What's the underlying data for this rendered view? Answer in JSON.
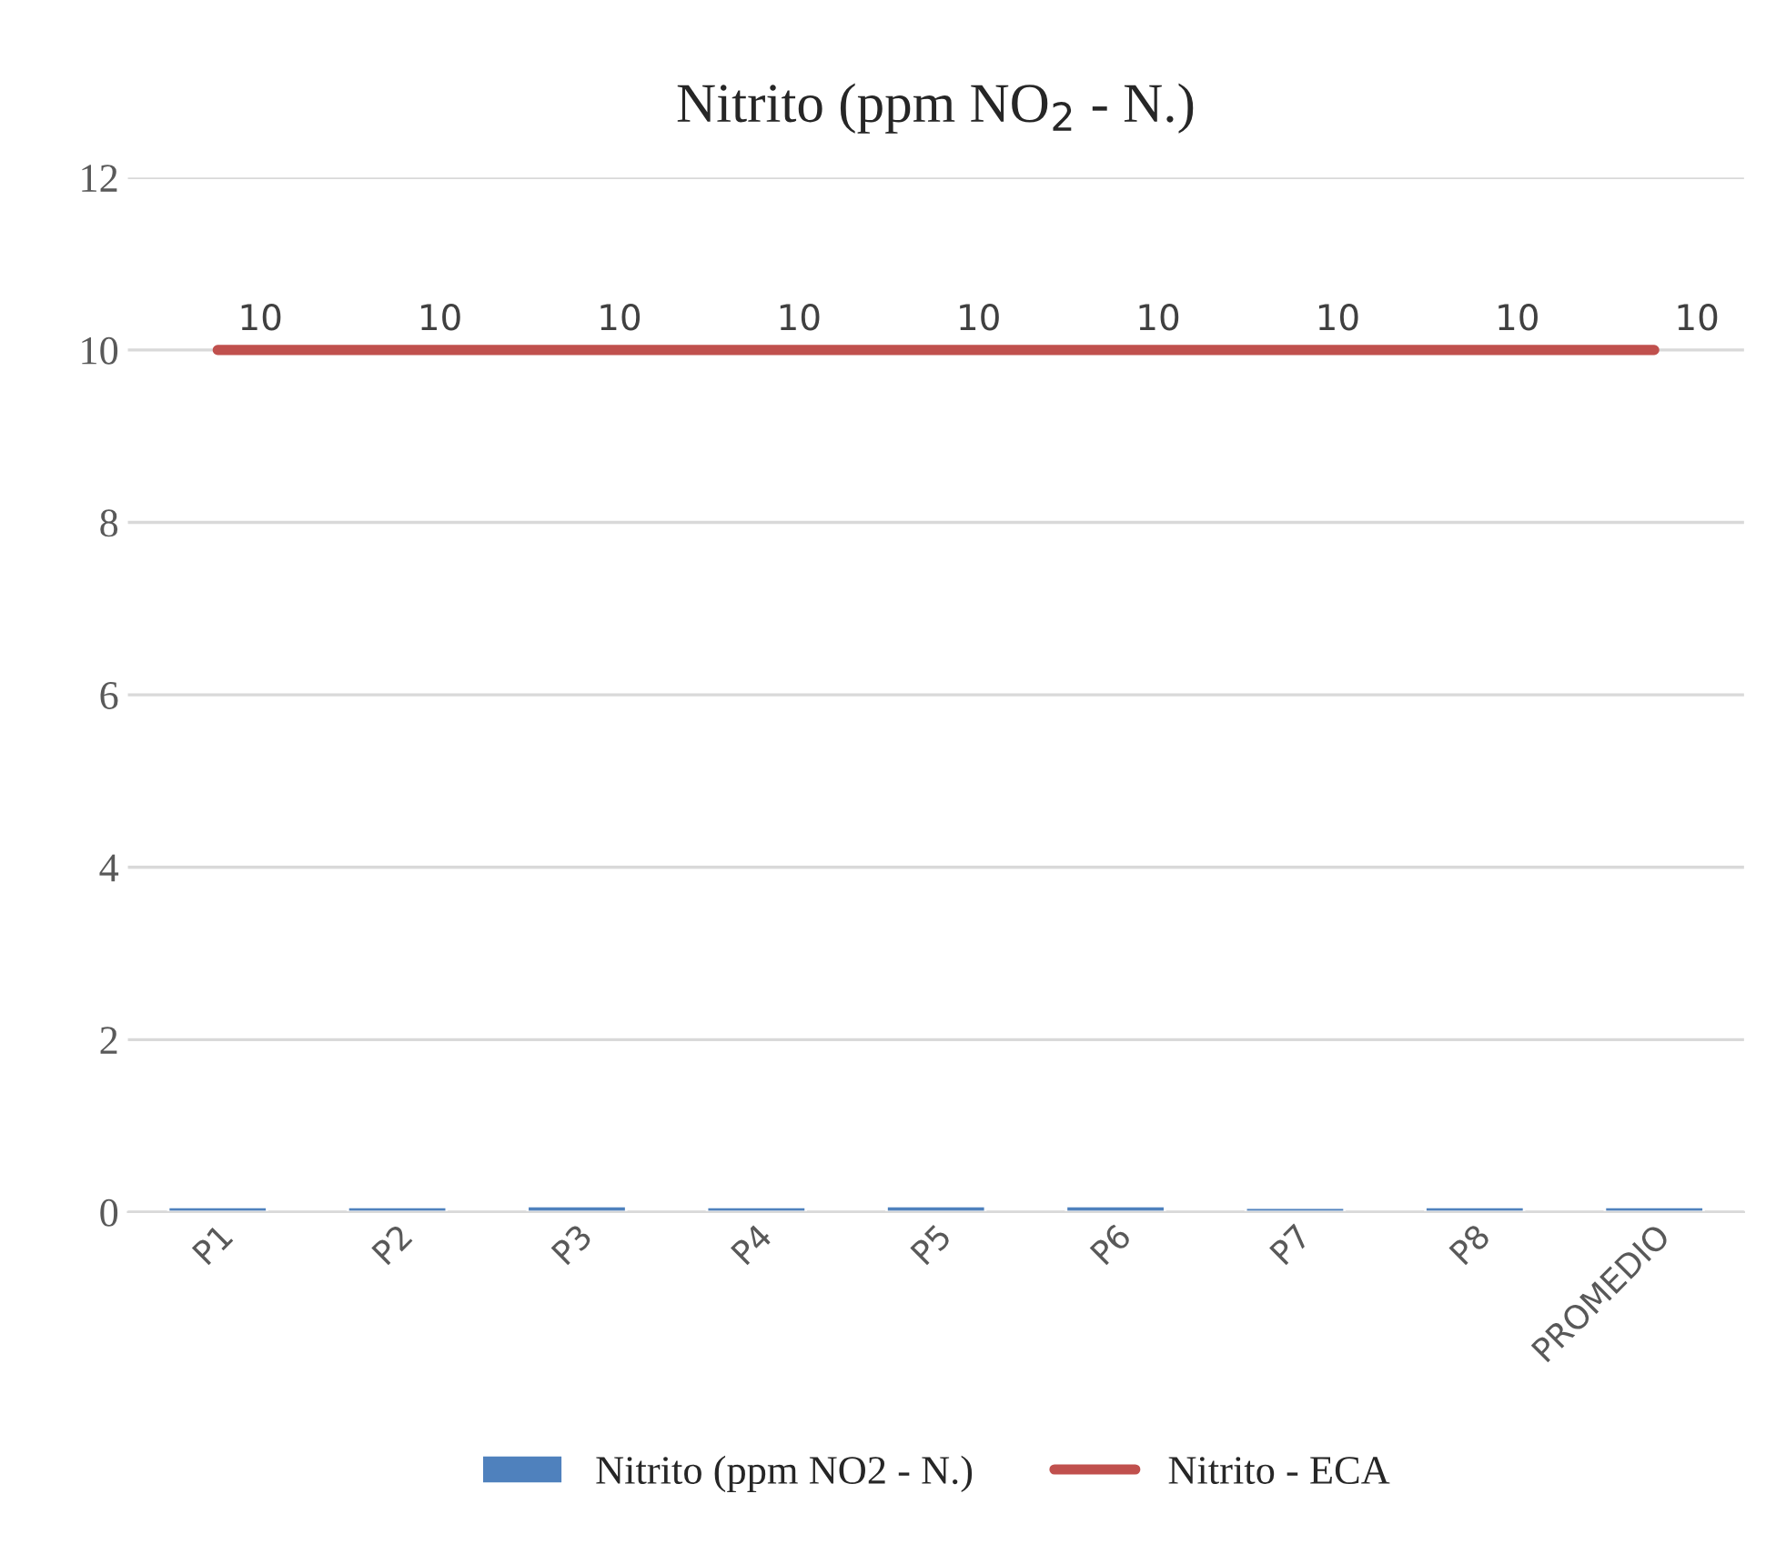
{
  "chart_data": {
    "type": "bar",
    "title": "Nitrito (ppm NO$_{2}$ - N.)",
    "categories": [
      "P1",
      "P2",
      "P3",
      "P4",
      "P5",
      "P6",
      "P7",
      "P8",
      "PROMEDIO"
    ],
    "series": [
      {
        "name": "Nitrito (ppm NO2 - N.)",
        "color": "#4f81bd",
        "values": [
          0.06,
          0.06,
          0.07,
          0.06,
          0.07,
          0.07,
          0.05,
          0.06,
          0.06
        ]
      },
      {
        "name": "Nitrito - ECA",
        "type": "line",
        "color": "#c0504d",
        "values": [
          10,
          10,
          10,
          10,
          10,
          10,
          10,
          10,
          10
        ],
        "value_labels": [
          "10",
          "10",
          "10",
          "10",
          "10",
          "10",
          "10",
          "10",
          "10"
        ]
      }
    ],
    "ylim": [
      0,
      12
    ],
    "yticks": [
      0,
      2,
      4,
      6,
      8,
      10,
      12
    ],
    "grid": "y",
    "legend": "bottom"
  }
}
